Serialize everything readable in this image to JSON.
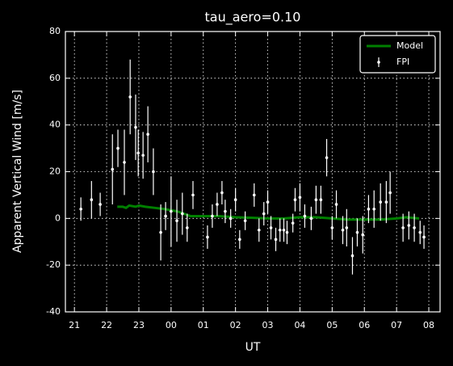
{
  "chart_data": {
    "type": "line",
    "title": "tau_aero=0.10",
    "xlabel": "UT",
    "ylabel": "Apparent Vertical Wind [m/s]",
    "xlim": [
      20.72,
      32.35
    ],
    "ylim": [
      -40,
      80
    ],
    "xticks": [
      21,
      22,
      23,
      {
        "value": 24,
        "label": "00"
      },
      {
        "value": 25,
        "label": "01"
      },
      {
        "value": 26,
        "label": "02"
      },
      {
        "value": 27,
        "label": "03"
      },
      {
        "value": 28,
        "label": "04"
      },
      {
        "value": 29,
        "label": "05"
      },
      {
        "value": 30,
        "label": "06"
      },
      {
        "value": 31,
        "label": "07"
      },
      {
        "value": 32,
        "label": "08"
      }
    ],
    "yticks": [
      -40,
      -20,
      0,
      20,
      40,
      60,
      80
    ],
    "grid": true,
    "legend": "upper right",
    "series": [
      {
        "name": "Model",
        "color": "#008000",
        "x": [
          22.33,
          22.5,
          22.6,
          22.7,
          22.9,
          23.0,
          23.2,
          23.5,
          23.8,
          24.0,
          24.2,
          24.4,
          24.6,
          25.0,
          25.5,
          26.0,
          26.5,
          27.0,
          27.5,
          28.0,
          28.5,
          29.0,
          29.5,
          30.0,
          30.5,
          31.0,
          31.3,
          31.7
        ],
        "values": [
          5,
          5,
          4.5,
          5.5,
          5,
          5.5,
          5,
          4.5,
          4,
          3.5,
          3,
          2,
          1,
          1,
          1,
          0.5,
          0.3,
          0,
          0,
          0.5,
          0.5,
          0,
          -0.5,
          -0.5,
          -0.5,
          0,
          0.5,
          0
        ]
      },
      {
        "name": "FPI",
        "color": "#ffffff",
        "x": [
          21.2,
          21.53,
          21.8,
          22.18,
          22.35,
          22.55,
          22.73,
          22.9,
          22.98,
          23.13,
          23.28,
          23.45,
          23.68,
          23.83,
          24.0,
          24.18,
          24.35,
          24.5,
          24.68,
          25.13,
          25.28,
          25.43,
          25.58,
          25.68,
          25.85,
          26.0,
          26.13,
          26.3,
          26.58,
          26.73,
          26.88,
          27.0,
          27.1,
          27.25,
          27.38,
          27.5,
          27.6,
          27.78,
          27.85,
          28.0,
          28.15,
          28.35,
          28.5,
          28.65,
          28.83,
          29.0,
          29.13,
          29.33,
          29.45,
          29.63,
          29.78,
          29.95,
          30.13,
          30.3,
          30.5,
          30.68,
          30.8,
          31.2,
          31.38,
          31.55,
          31.73,
          31.85
        ],
        "values": [
          4,
          8,
          6,
          21,
          30,
          24,
          52,
          39,
          28,
          27,
          36,
          20,
          -6,
          1,
          3,
          -1,
          2,
          -4,
          10,
          -8,
          1,
          6,
          11,
          3,
          0,
          8,
          -9,
          -1,
          10,
          -5,
          2,
          7,
          -4,
          -9,
          -5,
          -5,
          -6,
          -2,
          8,
          9,
          1,
          0,
          8,
          8,
          26,
          -4,
          6,
          -5,
          -4,
          -16,
          -6,
          -7,
          4,
          4,
          7,
          7,
          11,
          -4,
          -3,
          -4,
          -6,
          -8
        ],
        "errors": [
          5,
          8,
          5,
          15,
          8,
          14,
          16,
          14,
          10,
          10,
          12,
          10,
          12,
          6,
          15,
          9,
          9,
          6,
          6,
          5,
          5,
          5,
          5,
          5,
          4,
          5,
          4,
          4,
          5,
          5,
          5,
          5,
          5,
          5,
          5,
          5,
          5,
          4,
          5,
          6,
          5,
          5,
          6,
          6,
          8,
          5,
          6,
          6,
          8,
          8,
          6,
          8,
          6,
          8,
          8,
          9,
          9,
          6,
          6,
          6,
          5,
          5
        ]
      }
    ]
  }
}
